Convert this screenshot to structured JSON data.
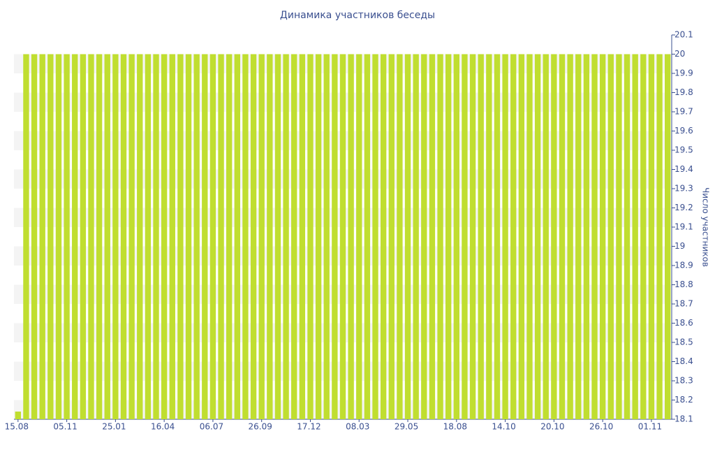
{
  "chart_data": {
    "type": "bar",
    "title": "Динамика участников беседы",
    "y_label": "Число участников",
    "categories": [
      "15.08",
      null,
      null,
      null,
      null,
      null,
      "05.11",
      null,
      null,
      null,
      null,
      null,
      "25.01",
      null,
      null,
      null,
      null,
      null,
      "16.04",
      null,
      null,
      null,
      null,
      null,
      "06.07",
      null,
      null,
      null,
      null,
      null,
      "26.09",
      null,
      null,
      null,
      null,
      null,
      "17.12",
      null,
      null,
      null,
      null,
      null,
      "08.03",
      null,
      null,
      null,
      null,
      null,
      "29.05",
      null,
      null,
      null,
      null,
      null,
      "18.08",
      null,
      null,
      null,
      null,
      null,
      "14.10",
      null,
      null,
      null,
      null,
      null,
      "20.10",
      null,
      null,
      null,
      null,
      null,
      "26.10",
      null,
      null,
      null,
      null,
      null,
      "01.11",
      null,
      null
    ],
    "values": [
      18.14,
      20,
      20,
      20,
      20,
      20,
      20,
      20,
      20,
      20,
      20,
      20,
      20,
      20,
      20,
      20,
      20,
      20,
      20,
      20,
      20,
      20,
      20,
      20,
      20,
      20,
      20,
      20,
      20,
      20,
      20,
      20,
      20,
      20,
      20,
      20,
      20,
      20,
      20,
      20,
      20,
      20,
      20,
      20,
      20,
      20,
      20,
      20,
      20,
      20,
      20,
      20,
      20,
      20,
      20,
      20,
      20,
      20,
      20,
      20,
      20,
      20,
      20,
      20,
      20,
      20,
      20,
      20,
      20,
      20,
      20,
      20,
      20,
      20,
      20,
      20,
      20,
      20,
      20,
      20,
      20
    ],
    "color": "#c0de30",
    "ylim": [
      18.1,
      20.1
    ],
    "yticks": [
      18.1,
      18.2,
      18.3,
      18.4,
      18.5,
      18.6,
      18.7,
      18.8,
      18.9,
      19,
      19.1,
      19.2,
      19.3,
      19.4,
      19.5,
      19.6,
      19.7,
      19.8,
      19.9,
      20,
      20.1
    ],
    "y_axis_side": "right",
    "stripes": true
  }
}
